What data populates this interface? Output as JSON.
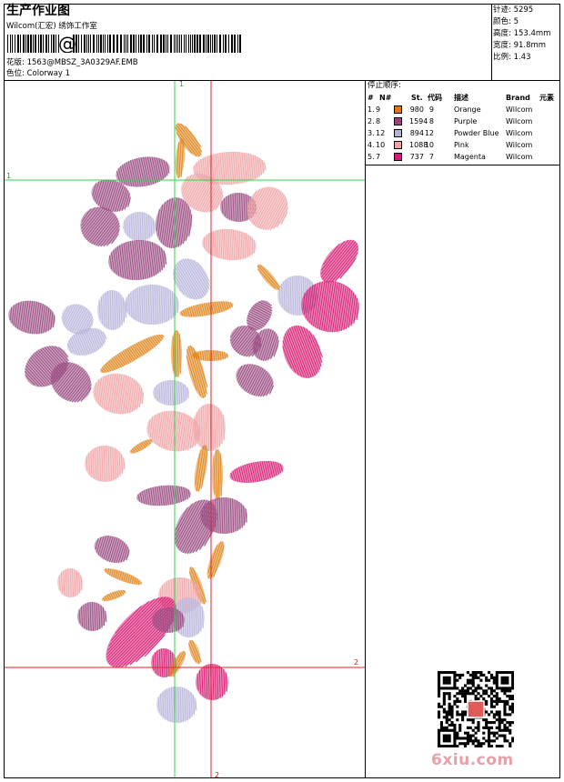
{
  "header": {
    "title": "生产作业图",
    "studio": "Wilcom(汇宏) 绣饰工作室",
    "design_label": "花版: 1563@MBSZ_3A0329AF.EMB",
    "colorway_label": "色位: Colorway 1"
  },
  "stats": {
    "stitches": "针迹: 5295",
    "colors": "颜色: 5",
    "height": "高度: 153.4mm",
    "width": "宽度: 91.8mm",
    "scale": "比例: 1.43"
  },
  "stop_sequence": {
    "title": "停止顺序:",
    "columns": [
      "#",
      "N#",
      "St.",
      "代码",
      "描述",
      "Brand",
      "元素"
    ],
    "rows": [
      {
        "num": "1.",
        "n": "9",
        "color": "#e0761c",
        "stitches": "980",
        "code": "9",
        "desc": "Orange",
        "brand": "Wilcom"
      },
      {
        "num": "2.",
        "n": "8",
        "color": "#97457d",
        "stitches": "1594",
        "code": "8",
        "desc": "Purple",
        "brand": "Wilcom"
      },
      {
        "num": "3.",
        "n": "12",
        "color": "#b6b3d8",
        "stitches": "894",
        "code": "12",
        "desc": "Powder Blue",
        "brand": "Wilcom"
      },
      {
        "num": "4.",
        "n": "10",
        "color": "#f0a4a6",
        "stitches": "1088",
        "code": "10",
        "desc": "Pink",
        "brand": "Wilcom"
      },
      {
        "num": "5.",
        "n": "7",
        "color": "#d81b76",
        "stitches": "737",
        "code": "7",
        "desc": "Magenta",
        "brand": "Wilcom"
      }
    ]
  },
  "guides": {
    "green_vertical_label": "1",
    "green_horizontal_label": "1",
    "red_vertical_label": "2",
    "red_horizontal_label": "2"
  },
  "watermark": "6xiu.com"
}
